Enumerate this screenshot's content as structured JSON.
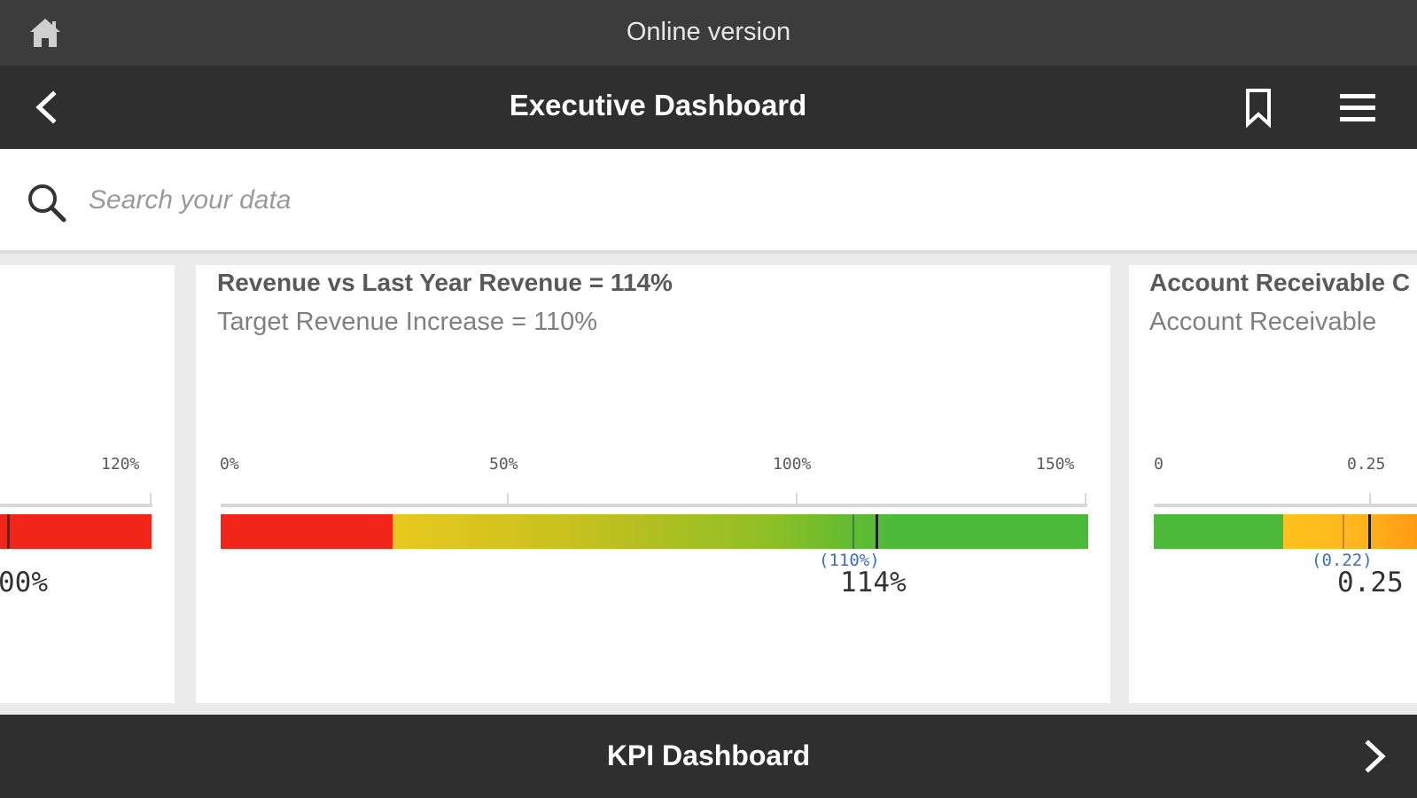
{
  "top_bar": {
    "title": "Online version",
    "icon": "home-icon"
  },
  "app_bar": {
    "title": "Executive Dashboard",
    "back_icon": "chevron-left-icon",
    "bookmark_icon": "bookmark-icon",
    "menu_icon": "hamburger-menu-icon"
  },
  "search": {
    "placeholder": "Search your data",
    "icon": "search-icon"
  },
  "cards": {
    "left": {
      "axis_max_label": "120%",
      "value_label": "00%",
      "bar_color": "#f2251a"
    },
    "mid": {
      "title": "Revenue vs Last Year Revenue = 114%",
      "subtitle": "Target Revenue Increase = 110%",
      "tick_labels": [
        "0%",
        "50%",
        "100%",
        "150%"
      ],
      "range": [
        0,
        150
      ],
      "value": 114,
      "target": 110,
      "value_label": "114%",
      "target_label": "(110%)",
      "colors": {
        "red": "#f2251a",
        "yellow": "#e8c81e",
        "green": "#4cb93a"
      }
    },
    "right": {
      "title": "Account Receivable C",
      "subtitle": "Account Receivable",
      "tick_labels": [
        "0",
        "0.25"
      ],
      "value": 0.25,
      "target": 0.22,
      "value_label": "0.25",
      "target_label": "(0.22)",
      "colors": {
        "green": "#4cb93a",
        "amber": "#ffb81e",
        "orange": "#ff9a14"
      }
    }
  },
  "bottom_bar": {
    "title": "KPI Dashboard",
    "next_icon": "chevron-right-icon"
  }
}
